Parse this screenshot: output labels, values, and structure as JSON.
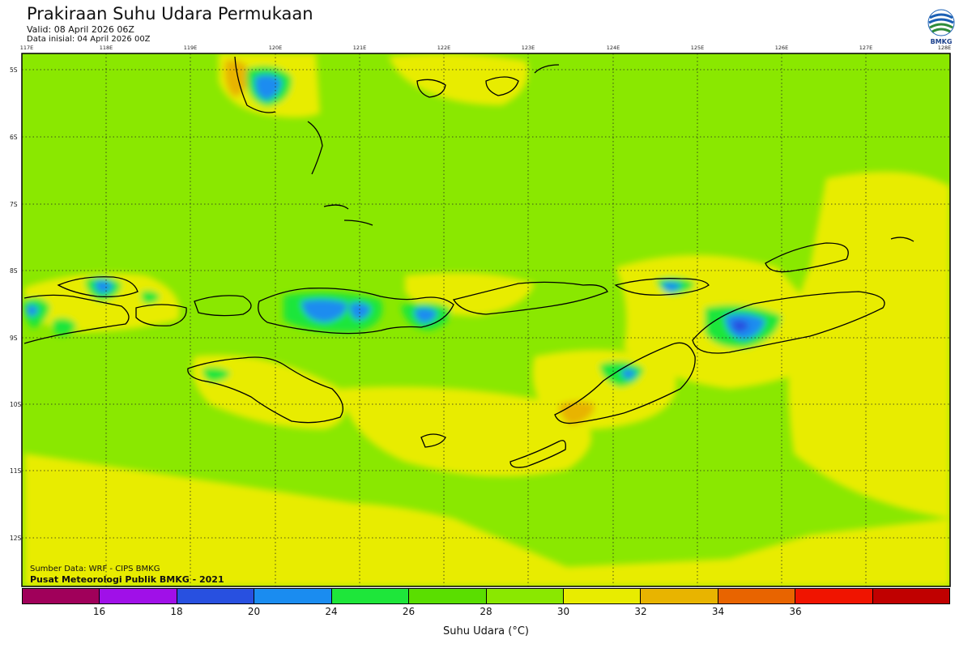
{
  "header": {
    "title": "Prakiraan Suhu Udara Permukaan",
    "valid": "Valid: 08 April 2026 06Z",
    "data_init": "Data inisial: 04 April 2026 00Z",
    "logo_text": "BMKG"
  },
  "map": {
    "lon_ticks": [
      "117E",
      "118E",
      "119E",
      "120E",
      "121E",
      "122E",
      "123E",
      "124E",
      "125E",
      "126E",
      "127E",
      "128E"
    ],
    "lat_ticks": [
      "5S",
      "6S",
      "7S",
      "8S",
      "9S",
      "10S",
      "11S",
      "12S"
    ],
    "background_color": "#8ae800",
    "warm_color": "#e8ec00",
    "hot_color": "#e8b400",
    "cool_color": "#1ee63a",
    "cold_color": "#1a8cf0",
    "coldest_color": "#2850e0"
  },
  "footer": {
    "source": "Sumber Data: WRF - CIPS BMKG",
    "center": "Pusat Meteorologi Publik BMKG - 2021"
  },
  "colorbar": {
    "colors": [
      "#a0005a",
      "#a010e8",
      "#2850e0",
      "#1a8cf0",
      "#1ee63a",
      "#5ade00",
      "#8ae800",
      "#e8ec00",
      "#e8b400",
      "#e86400",
      "#f01400",
      "#c00000"
    ],
    "ticks": [
      "16",
      "18",
      "20",
      "24",
      "26",
      "28",
      "30",
      "32",
      "34",
      "36"
    ],
    "label": "Suhu Udara (°C)"
  }
}
